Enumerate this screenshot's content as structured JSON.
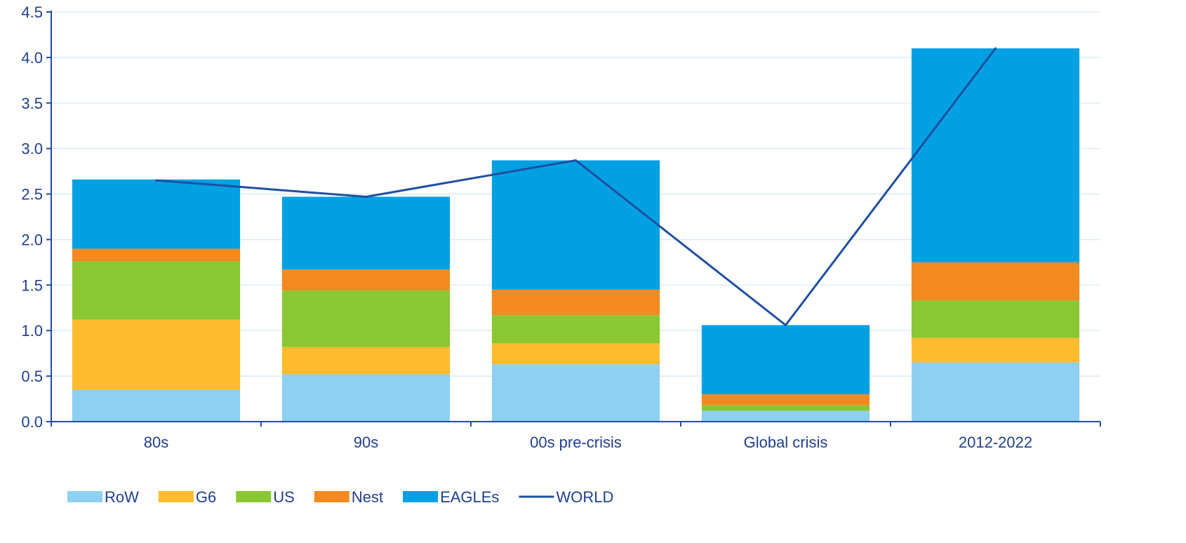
{
  "chart_data": {
    "type": "bar",
    "stacked": true,
    "title": "",
    "xlabel": "",
    "ylabel": "",
    "categories": [
      "80s",
      "90s",
      "00s pre-crisis",
      "Global crisis",
      "2012-2022"
    ],
    "ylim": [
      0,
      4.5
    ],
    "yticks": [
      "0.0",
      "0.5",
      "1.0",
      "1.5",
      "2.0",
      "2.5",
      "3.0",
      "3.5",
      "4.0",
      "4.5"
    ],
    "grid": true,
    "legend_position": "bottom-left",
    "series": [
      {
        "name": "RoW",
        "color": "#8dd0f2",
        "values": [
          0.35,
          0.52,
          0.63,
          0.12,
          0.65
        ]
      },
      {
        "name": "G6",
        "color": "#fdbb2d",
        "values": [
          0.77,
          0.3,
          0.23,
          0.0,
          0.27
        ]
      },
      {
        "name": "US",
        "color": "#8ac732",
        "values": [
          0.64,
          0.62,
          0.31,
          0.06,
          0.41
        ]
      },
      {
        "name": "Nest",
        "color": "#f28a1f",
        "values": [
          0.14,
          0.23,
          0.28,
          0.12,
          0.42
        ]
      },
      {
        "name": "EAGLEs",
        "color": "#00a0e3",
        "values": [
          0.76,
          0.8,
          1.42,
          0.76,
          2.35
        ]
      }
    ],
    "line_series": [
      {
        "name": "WORLD",
        "color": "#1f4fa0",
        "values": [
          2.65,
          2.47,
          2.87,
          1.06,
          4.1
        ]
      }
    ],
    "colors": {
      "grid": "#d7ecf7",
      "axis": "#1f4fa0",
      "text": "#1f3f8f"
    }
  }
}
